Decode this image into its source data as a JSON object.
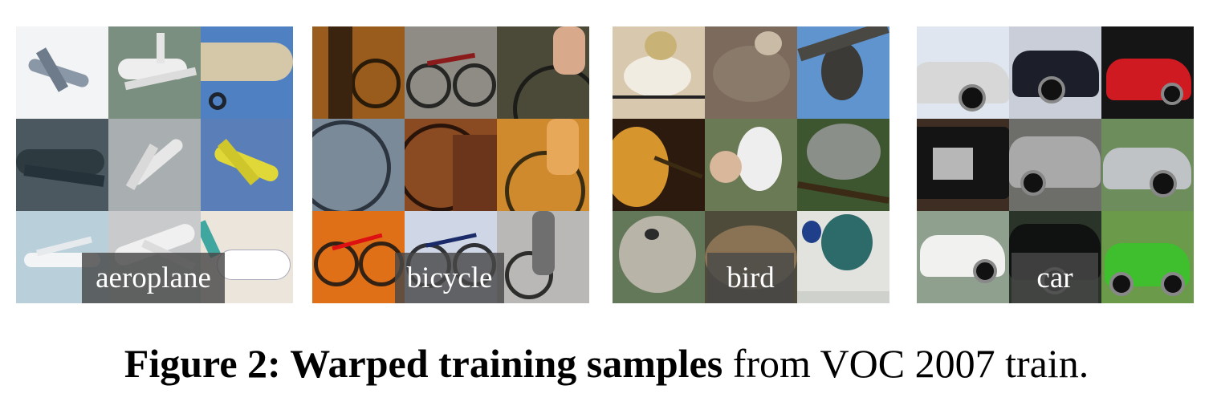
{
  "figure": {
    "panels": [
      {
        "label": "aeroplane",
        "tiles": [
          "#f3f4f6",
          "#7b8f80",
          "#4f81c2",
          "#4b5860",
          "#a9aeb0",
          "#5a7fb8",
          "#b9d0da",
          "#c9cacb",
          "#ebe5dc"
        ]
      },
      {
        "label": "bicycle",
        "tiles": [
          "#9a5c1d",
          "#8e8c84",
          "#4b4a38",
          "#7b8a99",
          "#8a4a22",
          "#cf8a2d",
          "#e07018",
          "#cfd6e6",
          "#b9b8b6"
        ]
      },
      {
        "label": "bird",
        "tiles": [
          "#d8c8ad",
          "#7c6a5c",
          "#5f94cf",
          "#2d1a0e",
          "#6a7a54",
          "#3e5630",
          "#637858",
          "#4e4b3a",
          "#e2e3de"
        ]
      },
      {
        "label": "car",
        "tiles": [
          "#dfe6ef",
          "#c9ced8",
          "#151515",
          "#3e2d22",
          "#6d6d6a",
          "#6d8d5c",
          "#8fa08f",
          "#2b3428",
          "#6b9a4a"
        ]
      }
    ]
  },
  "caption": {
    "bold_text": "Figure 2: Warped training samples",
    "normal_text": " from VOC 2007 train."
  }
}
